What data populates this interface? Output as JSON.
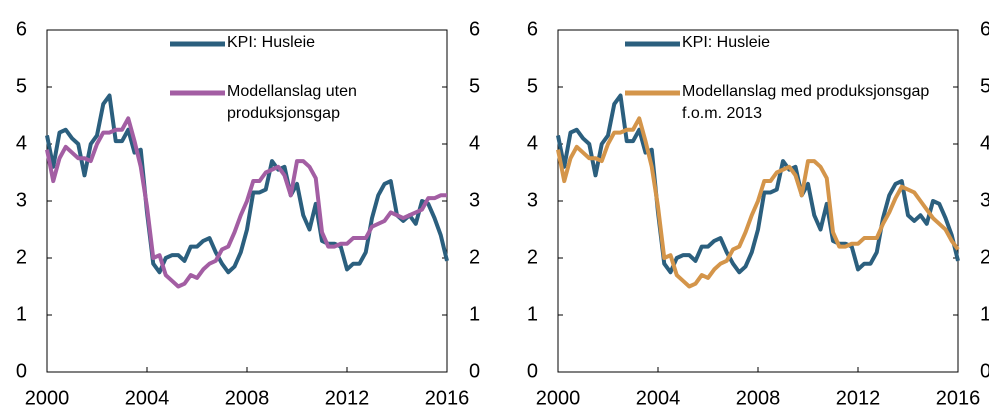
{
  "chart_data": [
    {
      "type": "line",
      "x": [
        2000,
        2000.25,
        2000.5,
        2000.75,
        2001,
        2001.25,
        2001.5,
        2001.75,
        2002,
        2002.25,
        2002.5,
        2002.75,
        2003,
        2003.25,
        2003.5,
        2003.75,
        2004,
        2004.25,
        2004.5,
        2004.75,
        2005,
        2005.25,
        2005.5,
        2005.75,
        2006,
        2006.25,
        2006.5,
        2006.75,
        2007,
        2007.25,
        2007.5,
        2007.75,
        2008,
        2008.25,
        2008.5,
        2008.75,
        2009,
        2009.25,
        2009.5,
        2009.75,
        2010,
        2010.25,
        2010.5,
        2010.75,
        2011,
        2011.25,
        2011.5,
        2011.75,
        2012,
        2012.25,
        2012.5,
        2012.75,
        2013,
        2013.25,
        2013.5,
        2013.75,
        2014,
        2014.25,
        2014.5,
        2014.75,
        2015,
        2015.25,
        2015.5,
        2015.75,
        2016
      ],
      "series": [
        {
          "name": "KPI: Husleie",
          "color": "#2b5f7e",
          "values": [
            4.15,
            3.6,
            4.2,
            4.25,
            4.1,
            4.0,
            3.45,
            4.0,
            4.15,
            4.7,
            4.85,
            4.05,
            4.05,
            4.25,
            3.85,
            3.9,
            2.8,
            1.9,
            1.75,
            2.0,
            2.05,
            2.05,
            1.95,
            2.2,
            2.2,
            2.3,
            2.35,
            2.1,
            1.9,
            1.75,
            1.85,
            2.1,
            2.5,
            3.15,
            3.15,
            3.2,
            3.7,
            3.55,
            3.6,
            3.1,
            3.3,
            2.75,
            2.5,
            2.95,
            2.3,
            2.25,
            2.25,
            2.2,
            1.8,
            1.9,
            1.9,
            2.1,
            2.7,
            3.1,
            3.3,
            3.35,
            2.75,
            2.65,
            2.75,
            2.6,
            3.0,
            2.95,
            2.7,
            2.4,
            1.95
          ]
        },
        {
          "name": "Modellanslag uten produksjonsgap",
          "color": "#a35ea3",
          "values": [
            3.9,
            3.35,
            3.75,
            3.95,
            3.85,
            3.75,
            3.75,
            3.7,
            4.0,
            4.2,
            4.2,
            4.25,
            4.25,
            4.45,
            4.05,
            3.6,
            2.9,
            2.0,
            2.05,
            1.7,
            1.6,
            1.5,
            1.55,
            1.7,
            1.65,
            1.8,
            1.9,
            1.95,
            2.15,
            2.2,
            2.45,
            2.75,
            3.0,
            3.35,
            3.35,
            3.5,
            3.55,
            3.6,
            3.45,
            3.1,
            3.7,
            3.7,
            3.6,
            3.4,
            2.45,
            2.2,
            2.2,
            2.25,
            2.25,
            2.35,
            2.35,
            2.35,
            2.55,
            2.6,
            2.65,
            2.8,
            2.75,
            2.7,
            2.75,
            2.8,
            2.85,
            3.05,
            3.05,
            3.1,
            3.1
          ]
        }
      ],
      "xlim": [
        2000,
        2016
      ],
      "xticks": [
        2000,
        2004,
        2008,
        2012,
        2016
      ],
      "ylim": [
        0,
        6
      ],
      "yticks": [
        0,
        1,
        2,
        3,
        4,
        5,
        6
      ],
      "y2lim": [
        0,
        6
      ],
      "y2ticks": [
        0,
        1,
        2,
        3,
        4,
        5,
        6
      ]
    },
    {
      "type": "line",
      "x": [
        2000,
        2000.25,
        2000.5,
        2000.75,
        2001,
        2001.25,
        2001.5,
        2001.75,
        2002,
        2002.25,
        2002.5,
        2002.75,
        2003,
        2003.25,
        2003.5,
        2003.75,
        2004,
        2004.25,
        2004.5,
        2004.75,
        2005,
        2005.25,
        2005.5,
        2005.75,
        2006,
        2006.25,
        2006.5,
        2006.75,
        2007,
        2007.25,
        2007.5,
        2007.75,
        2008,
        2008.25,
        2008.5,
        2008.75,
        2009,
        2009.25,
        2009.5,
        2009.75,
        2010,
        2010.25,
        2010.5,
        2010.75,
        2011,
        2011.25,
        2011.5,
        2011.75,
        2012,
        2012.25,
        2012.5,
        2012.75,
        2013,
        2013.25,
        2013.5,
        2013.75,
        2014,
        2014.25,
        2014.5,
        2014.75,
        2015,
        2015.25,
        2015.5,
        2015.75,
        2016
      ],
      "series": [
        {
          "name": "KPI: Husleie",
          "color": "#2b5f7e",
          "values": [
            4.15,
            3.6,
            4.2,
            4.25,
            4.1,
            4.0,
            3.45,
            4.0,
            4.15,
            4.7,
            4.85,
            4.05,
            4.05,
            4.25,
            3.85,
            3.9,
            2.8,
            1.9,
            1.75,
            2.0,
            2.05,
            2.05,
            1.95,
            2.2,
            2.2,
            2.3,
            2.35,
            2.1,
            1.9,
            1.75,
            1.85,
            2.1,
            2.5,
            3.15,
            3.15,
            3.2,
            3.7,
            3.55,
            3.6,
            3.1,
            3.3,
            2.75,
            2.5,
            2.95,
            2.3,
            2.25,
            2.25,
            2.2,
            1.8,
            1.9,
            1.9,
            2.1,
            2.7,
            3.1,
            3.3,
            3.35,
            2.75,
            2.65,
            2.75,
            2.6,
            3.0,
            2.95,
            2.7,
            2.4,
            1.95
          ]
        },
        {
          "name": "Modellanslag med produksjonsgap f.o.m. 2013",
          "color": "#d4954a",
          "values": [
            3.9,
            3.35,
            3.75,
            3.95,
            3.85,
            3.75,
            3.75,
            3.7,
            4.0,
            4.2,
            4.2,
            4.25,
            4.25,
            4.45,
            4.05,
            3.6,
            2.9,
            2.0,
            2.05,
            1.7,
            1.6,
            1.5,
            1.55,
            1.7,
            1.65,
            1.8,
            1.9,
            1.95,
            2.15,
            2.2,
            2.45,
            2.75,
            3.0,
            3.35,
            3.35,
            3.5,
            3.55,
            3.6,
            3.45,
            3.1,
            3.7,
            3.7,
            3.6,
            3.4,
            2.45,
            2.2,
            2.2,
            2.25,
            2.25,
            2.35,
            2.35,
            2.35,
            2.6,
            2.8,
            3.05,
            3.25,
            3.2,
            3.15,
            3.0,
            2.85,
            2.7,
            2.6,
            2.5,
            2.3,
            2.15
          ]
        }
      ],
      "xlim": [
        2000,
        2016
      ],
      "xticks": [
        2000,
        2004,
        2008,
        2012,
        2016
      ],
      "ylim": [
        0,
        6
      ],
      "yticks": [
        0,
        1,
        2,
        3,
        4,
        5,
        6
      ],
      "y2lim": [
        0,
        6
      ],
      "y2ticks": [
        0,
        1,
        2,
        3,
        4,
        5,
        6
      ]
    }
  ]
}
